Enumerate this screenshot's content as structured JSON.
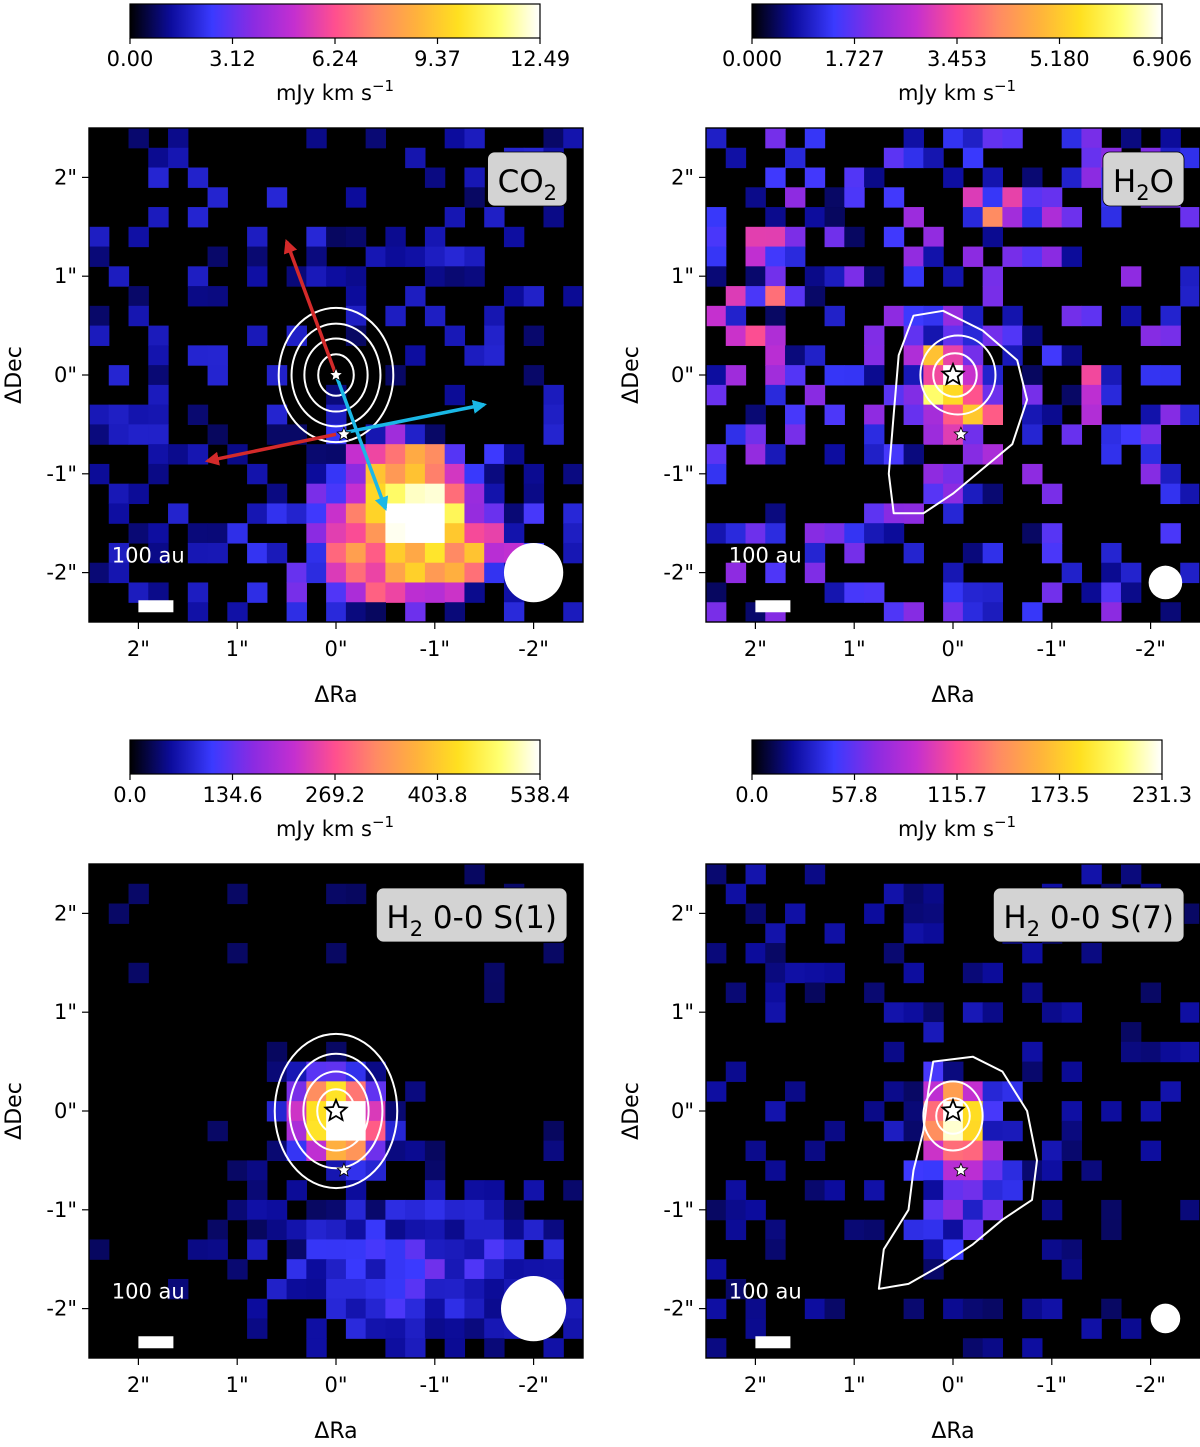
{
  "figure": {
    "colormap": "gnuplot2",
    "colormap_stops": [
      "#000000",
      "#0c0c9c",
      "#3a3aff",
      "#8a2be2",
      "#c42fd0",
      "#ff4f8f",
      "#ff8a64",
      "#ffb23c",
      "#ffe020",
      "#ffff70",
      "#ffffff"
    ],
    "contour_color": "#ffffff",
    "vector_colors": {
      "red": "#d42a2a",
      "cyan": "#1ab8e6"
    }
  },
  "chart_data": [
    {
      "type": "heatmap",
      "panel": "top-left",
      "label": "CO",
      "label_sub": "2",
      "label_after": "",
      "colorbar": {
        "ticks": [
          "0.00",
          "3.12",
          "6.24",
          "9.37",
          "12.49"
        ],
        "min": 0,
        "max": 12.49,
        "unit": "mJy km s",
        "unit_exp": "−1"
      },
      "x_ticks": [
        "2\"",
        "1\"",
        "0\"",
        "-1\"",
        "-2\""
      ],
      "y_ticks": [
        "2\"",
        "1\"",
        "0\"",
        "-1\"",
        "-2\""
      ],
      "xlabel": "ΔRa",
      "ylabel": "ΔDec",
      "xlim": [
        2.5,
        -2.5
      ],
      "ylim": [
        -2.5,
        2.5
      ],
      "scale_bar": "100 au",
      "beam_radius_arcsec": 0.3,
      "stars": [
        {
          "ra": 0,
          "dec": 0
        },
        {
          "ra": -0.08,
          "dec": -0.6
        }
      ],
      "emission_blobs": [
        {
          "ra": -0.75,
          "dec": -1.2,
          "sigma_ra": 0.45,
          "sigma_dec": 0.35,
          "peak": 12.49
        },
        {
          "ra": -0.45,
          "dec": -1.9,
          "sigma_ra": 0.6,
          "sigma_dec": 0.35,
          "peak": 6.5
        },
        {
          "ra": -1.3,
          "dec": -1.8,
          "sigma_ra": 0.4,
          "sigma_dec": 0.3,
          "peak": 5.0
        }
      ],
      "noise_level": 2.2,
      "contours": [
        {
          "ra": 0.0,
          "dec": 0.0,
          "rx": 0.58,
          "ry": 0.68
        },
        {
          "ra": 0.0,
          "dec": 0.0,
          "rx": 0.45,
          "ry": 0.52
        },
        {
          "ra": 0.0,
          "dec": 0.0,
          "rx": 0.32,
          "ry": 0.37
        },
        {
          "ra": 0.0,
          "dec": 0.0,
          "rx": 0.18,
          "ry": 0.21
        }
      ],
      "arrows": [
        {
          "color": "red",
          "from": [
            0.0,
            0.0
          ],
          "to": [
            0.5,
            1.35
          ]
        },
        {
          "color": "red",
          "from": [
            0.0,
            -0.6
          ],
          "to": [
            1.3,
            -0.87
          ]
        },
        {
          "color": "cyan",
          "from": [
            0.0,
            0.0
          ],
          "to": [
            -0.5,
            -1.35
          ]
        },
        {
          "color": "cyan",
          "from": [
            -0.1,
            -0.58
          ],
          "to": [
            -1.5,
            -0.3
          ]
        }
      ]
    },
    {
      "type": "heatmap",
      "panel": "top-right",
      "label": "H",
      "label_sub": "2",
      "label_after": "O",
      "colorbar": {
        "ticks": [
          "0.000",
          "1.727",
          "3.453",
          "5.180",
          "6.906"
        ],
        "min": 0,
        "max": 6.906,
        "unit": "mJy km s",
        "unit_exp": "−1"
      },
      "x_ticks": [
        "2\"",
        "1\"",
        "0\"",
        "-1\"",
        "-2\""
      ],
      "y_ticks": [
        "2\"",
        "1\"",
        "0\"",
        "-1\"",
        "-2\""
      ],
      "xlabel": "ΔRa",
      "ylabel": "ΔDec",
      "xlim": [
        2.5,
        -2.5
      ],
      "ylim": [
        -2.5,
        2.5
      ],
      "scale_bar": "100 au",
      "beam_radius_arcsec": 0.17,
      "stars": [
        {
          "ra": 0,
          "dec": 0
        },
        {
          "ra": -0.08,
          "dec": -0.6
        }
      ],
      "emission_blobs": [
        {
          "ra": 0.0,
          "dec": 0.0,
          "sigma_ra": 0.22,
          "sigma_dec": 0.25,
          "peak": 6.906
        },
        {
          "ra": -0.05,
          "dec": -0.45,
          "sigma_ra": 0.25,
          "sigma_dec": 0.2,
          "peak": 3.8
        },
        {
          "ra": 2.0,
          "dec": 0.7,
          "sigma_ra": 0.25,
          "sigma_dec": 0.6,
          "peak": 2.6
        },
        {
          "ra": -0.4,
          "dec": 1.7,
          "sigma_ra": 0.45,
          "sigma_dec": 0.2,
          "peak": 3.0
        },
        {
          "ra": -1.2,
          "dec": -0.1,
          "sigma_ra": 0.2,
          "sigma_dec": 0.2,
          "peak": 2.7
        }
      ],
      "noise_level": 2.4,
      "contours": [
        {
          "path": [
            [
              0.4,
              0.6
            ],
            [
              0.1,
              0.65
            ],
            [
              -0.3,
              0.45
            ],
            [
              -0.65,
              0.15
            ],
            [
              -0.75,
              -0.25
            ],
            [
              -0.6,
              -0.7
            ],
            [
              -0.3,
              -0.95
            ],
            [
              0.0,
              -1.2
            ],
            [
              0.3,
              -1.4
            ],
            [
              0.6,
              -1.4
            ],
            [
              0.65,
              -1.0
            ],
            [
              0.6,
              -0.4
            ],
            [
              0.55,
              0.2
            ]
          ]
        },
        {
          "ra": -0.05,
          "dec": 0.0,
          "rx": 0.38,
          "ry": 0.4
        },
        {
          "ra": -0.02,
          "dec": 0.0,
          "rx": 0.22,
          "ry": 0.22
        }
      ],
      "arrows": []
    },
    {
      "type": "heatmap",
      "panel": "bottom-left",
      "label": "H",
      "label_sub": "2",
      "label_after": " 0-0 S(1)",
      "colorbar": {
        "ticks": [
          "0.0",
          "134.6",
          "269.2",
          "403.8",
          "538.4"
        ],
        "min": 0,
        "max": 538.4,
        "unit": "mJy km s",
        "unit_exp": "−1"
      },
      "x_ticks": [
        "2\"",
        "1\"",
        "0\"",
        "-1\"",
        "-2\""
      ],
      "y_ticks": [
        "2\"",
        "1\"",
        "0\"",
        "-1\"",
        "-2\""
      ],
      "xlabel": "ΔRa",
      "ylabel": "ΔDec",
      "xlim": [
        2.5,
        -2.5
      ],
      "ylim": [
        -2.5,
        2.5
      ],
      "scale_bar": "100 au",
      "beam_radius_arcsec": 0.33,
      "stars": [
        {
          "ra": 0,
          "dec": 0
        },
        {
          "ra": -0.08,
          "dec": -0.6
        }
      ],
      "emission_blobs": [
        {
          "ra": 0.0,
          "dec": 0.0,
          "sigma_ra": 0.28,
          "sigma_dec": 0.25,
          "peak": 538.4
        },
        {
          "ra": -0.1,
          "dec": -0.25,
          "sigma_ra": 0.2,
          "sigma_dec": 0.18,
          "peak": 360
        },
        {
          "ra": -0.9,
          "dec": -1.6,
          "sigma_ra": 1.2,
          "sigma_dec": 0.6,
          "peak": 110
        }
      ],
      "noise_level": 40,
      "contours": [
        {
          "ra": 0.0,
          "dec": 0.0,
          "rx": 0.62,
          "ry": 0.78
        },
        {
          "ra": 0.0,
          "dec": 0.0,
          "rx": 0.47,
          "ry": 0.58
        },
        {
          "ra": 0.0,
          "dec": 0.0,
          "rx": 0.33,
          "ry": 0.4
        },
        {
          "ra": 0.0,
          "dec": 0.0,
          "rx": 0.19,
          "ry": 0.22
        }
      ],
      "arrows": []
    },
    {
      "type": "heatmap",
      "panel": "bottom-right",
      "label": "H",
      "label_sub": "2",
      "label_after": " 0-0 S(7)",
      "colorbar": {
        "ticks": [
          "0.0",
          "57.8",
          "115.7",
          "173.5",
          "231.3"
        ],
        "min": 0,
        "max": 231.3,
        "unit": "mJy km s",
        "unit_exp": "−1"
      },
      "x_ticks": [
        "2\"",
        "1\"",
        "0\"",
        "-1\"",
        "-2\""
      ],
      "y_ticks": [
        "2\"",
        "1\"",
        "0\"",
        "-1\"",
        "-2\""
      ],
      "xlabel": "ΔRa",
      "ylabel": "ΔDec",
      "xlim": [
        2.5,
        -2.5
      ],
      "ylim": [
        -2.5,
        2.5
      ],
      "scale_bar": "100 au",
      "beam_radius_arcsec": 0.15,
      "stars": [
        {
          "ra": 0,
          "dec": 0
        },
        {
          "ra": -0.08,
          "dec": -0.6
        }
      ],
      "emission_blobs": [
        {
          "ra": 0.0,
          "dec": -0.05,
          "sigma_ra": 0.18,
          "sigma_dec": 0.2,
          "peak": 231.3
        },
        {
          "ra": -0.1,
          "dec": -0.5,
          "sigma_ra": 0.35,
          "sigma_dec": 0.6,
          "peak": 75
        }
      ],
      "noise_level": 30,
      "contours": [
        {
          "path": [
            [
              0.2,
              0.5
            ],
            [
              -0.2,
              0.55
            ],
            [
              -0.5,
              0.4
            ],
            [
              -0.75,
              0.0
            ],
            [
              -0.85,
              -0.5
            ],
            [
              -0.8,
              -0.9
            ],
            [
              -0.5,
              -1.1
            ],
            [
              -0.2,
              -1.35
            ],
            [
              0.1,
              -1.55
            ],
            [
              0.45,
              -1.75
            ],
            [
              0.75,
              -1.8
            ],
            [
              0.7,
              -1.4
            ],
            [
              0.45,
              -1.0
            ],
            [
              0.4,
              -0.6
            ],
            [
              0.3,
              -0.2
            ],
            [
              0.25,
              0.2
            ]
          ]
        },
        {
          "ra": 0.0,
          "dec": -0.05,
          "rx": 0.3,
          "ry": 0.35
        },
        {
          "ra": 0.0,
          "dec": -0.05,
          "rx": 0.17,
          "ry": 0.18
        }
      ],
      "arrows": []
    }
  ]
}
